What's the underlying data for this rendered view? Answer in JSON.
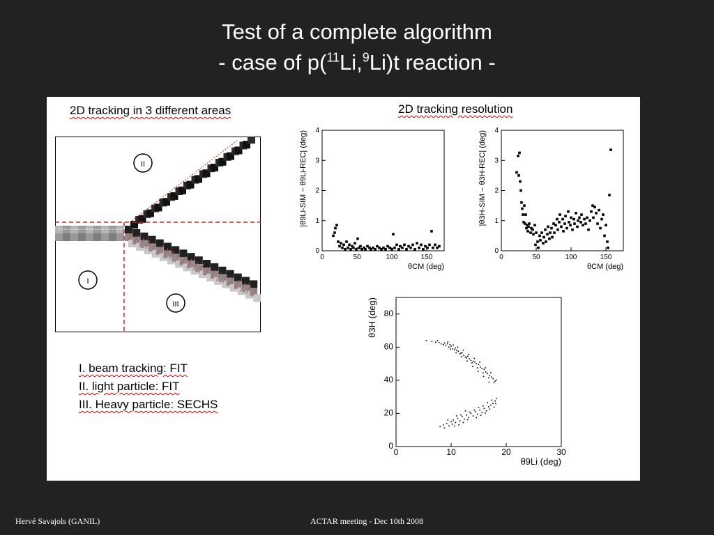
{
  "slide": {
    "title_line1": "Test of a complete algorithm",
    "title_line2_pre": "- case of p(",
    "title_line2_sup1": "11",
    "title_line2_mid": "Li,",
    "title_line2_sup2": "9",
    "title_line2_post": "Li)t reaction -",
    "footer_left": "Hervé Savajols (GANIL)",
    "footer_center": "ACTAR meeting - Dec 10th 2008"
  },
  "panel": {
    "left_heading": "2D tracking in 3 different areas",
    "right_heading": "2D tracking resolution",
    "area_labels": [
      "II",
      "I",
      "III"
    ],
    "legend": [
      "I. beam tracking: FIT",
      "II. light particle: FIT",
      "III. Heavy particle: SECHS"
    ]
  },
  "colors": {
    "background": "#222222",
    "panel": "#ffffff",
    "dashed_lines": "#d42020"
  },
  "chart_data": [
    {
      "type": "scatter",
      "name_hint": "9Li resolution",
      "ylabel": "|θ9Li-SIM − θ9Li-REC| (deg)",
      "xlabel": "θCM (deg)",
      "xlim": [
        0,
        175
      ],
      "ylim": [
        0,
        4
      ],
      "xticks": [
        0,
        50,
        100,
        150
      ],
      "yticks": [
        0,
        1,
        2,
        3,
        4
      ],
      "points": [
        [
          16,
          0.5
        ],
        [
          18,
          0.6
        ],
        [
          19,
          0.75
        ],
        [
          21,
          0.85
        ],
        [
          23,
          0.3
        ],
        [
          25,
          0.15
        ],
        [
          27,
          0.25
        ],
        [
          29,
          0.1
        ],
        [
          31,
          0.2
        ],
        [
          33,
          0.05
        ],
        [
          35,
          0.3
        ],
        [
          37,
          0.1
        ],
        [
          39,
          0.2
        ],
        [
          41,
          0.05
        ],
        [
          43,
          0.15
        ],
        [
          45,
          0.1
        ],
        [
          47,
          0.25
        ],
        [
          49,
          0.05
        ],
        [
          51,
          0.4
        ],
        [
          53,
          0.1
        ],
        [
          55,
          0.15
        ],
        [
          57,
          0.05
        ],
        [
          60,
          0.1
        ],
        [
          62,
          0.05
        ],
        [
          65,
          0.15
        ],
        [
          68,
          0.1
        ],
        [
          70,
          0.05
        ],
        [
          73,
          0.1
        ],
        [
          76,
          0.05
        ],
        [
          79,
          0.15
        ],
        [
          82,
          0.1
        ],
        [
          85,
          0.05
        ],
        [
          88,
          0.1
        ],
        [
          91,
          0.05
        ],
        [
          94,
          0.15
        ],
        [
          97,
          0.1
        ],
        [
          100,
          0.05
        ],
        [
          102,
          0.55
        ],
        [
          104,
          0.1
        ],
        [
          107,
          0.2
        ],
        [
          110,
          0.05
        ],
        [
          112,
          0.15
        ],
        [
          115,
          0.1
        ],
        [
          118,
          0.2
        ],
        [
          121,
          0.05
        ],
        [
          124,
          0.15
        ],
        [
          127,
          0.1
        ],
        [
          130,
          0.2
        ],
        [
          133,
          0.05
        ],
        [
          136,
          0.25
        ],
        [
          139,
          0.1
        ],
        [
          142,
          0.2
        ],
        [
          145,
          0.05
        ],
        [
          148,
          0.15
        ],
        [
          151,
          0.1
        ],
        [
          154,
          0.2
        ],
        [
          157,
          0.65
        ],
        [
          159,
          0.1
        ],
        [
          162,
          0.2
        ],
        [
          165,
          0.1
        ],
        [
          168,
          0.15
        ]
      ]
    },
    {
      "type": "scatter",
      "name_hint": "3H resolution",
      "ylabel": "|θ3H-SIM − θ3H-REC| (deg)",
      "xlabel": "θCM (deg)",
      "xlim": [
        0,
        175
      ],
      "ylim": [
        0,
        4
      ],
      "xticks": [
        0,
        50,
        100,
        150
      ],
      "yticks": [
        0,
        1,
        2,
        3,
        4
      ],
      "points": [
        [
          22,
          2.6
        ],
        [
          24,
          3.15
        ],
        [
          25,
          2.5
        ],
        [
          26,
          3.25
        ],
        [
          27,
          2.3
        ],
        [
          28,
          2.0
        ],
        [
          29,
          1.6
        ],
        [
          30,
          1.4
        ],
        [
          31,
          1.2
        ],
        [
          32,
          0.95
        ],
        [
          33,
          1.5
        ],
        [
          34,
          0.9
        ],
        [
          35,
          1.2
        ],
        [
          36,
          0.75
        ],
        [
          37,
          0.85
        ],
        [
          38,
          0.65
        ],
        [
          39,
          0.8
        ],
        [
          40,
          0.9
        ],
        [
          42,
          0.6
        ],
        [
          43,
          0.75
        ],
        [
          45,
          0.7
        ],
        [
          46,
          0.55
        ],
        [
          48,
          0.85
        ],
        [
          49,
          0.2
        ],
        [
          50,
          0.6
        ],
        [
          52,
          0.3
        ],
        [
          53,
          0.1
        ],
        [
          55,
          0.5
        ],
        [
          56,
          0.35
        ],
        [
          58,
          0.6
        ],
        [
          60,
          0.25
        ],
        [
          61,
          0.45
        ],
        [
          63,
          0.7
        ],
        [
          64,
          0.3
        ],
        [
          66,
          0.55
        ],
        [
          67,
          0.8
        ],
        [
          69,
          0.4
        ],
        [
          70,
          0.6
        ],
        [
          72,
          0.75
        ],
        [
          73,
          0.45
        ],
        [
          75,
          0.9
        ],
        [
          76,
          0.6
        ],
        [
          78,
          0.85
        ],
        [
          80,
          1.05
        ],
        [
          81,
          0.7
        ],
        [
          83,
          0.95
        ],
        [
          84,
          1.2
        ],
        [
          86,
          0.8
        ],
        [
          88,
          1.05
        ],
        [
          89,
          0.65
        ],
        [
          91,
          0.9
        ],
        [
          92,
          1.15
        ],
        [
          94,
          0.75
        ],
        [
          96,
          1.3
        ],
        [
          97,
          0.95
        ],
        [
          99,
          0.85
        ],
        [
          100,
          1.1
        ],
        [
          102,
          0.7
        ],
        [
          104,
          1.05
        ],
        [
          105,
          0.9
        ],
        [
          107,
          1.25
        ],
        [
          109,
          0.8
        ],
        [
          110,
          1.0
        ],
        [
          112,
          1.1
        ],
        [
          114,
          0.95
        ],
        [
          115,
          1.2
        ],
        [
          117,
          0.85
        ],
        [
          119,
          1.05
        ],
        [
          121,
          0.9
        ],
        [
          123,
          1.1
        ],
        [
          125,
          0.7
        ],
        [
          127,
          1.0
        ],
        [
          129,
          1.3
        ],
        [
          131,
          1.5
        ],
        [
          132,
          1.1
        ],
        [
          134,
          1.45
        ],
        [
          136,
          1.25
        ],
        [
          138,
          0.9
        ],
        [
          140,
          1.35
        ],
        [
          142,
          0.75
        ],
        [
          144,
          1.05
        ],
        [
          146,
          1.2
        ],
        [
          148,
          0.5
        ],
        [
          150,
          0.85
        ],
        [
          152,
          0.3
        ],
        [
          153,
          0.1
        ],
        [
          155,
          1.85
        ],
        [
          157,
          3.35
        ]
      ]
    },
    {
      "type": "scatter",
      "name_hint": "kinematics",
      "ylabel": "θ3H (deg)",
      "xlabel": "θ9Li (deg)",
      "xlim": [
        0,
        30
      ],
      "ylim": [
        0,
        90
      ],
      "xticks": [
        0,
        10,
        20,
        30
      ],
      "yticks": [
        0,
        20,
        40,
        60,
        80
      ],
      "upper_branch": [
        [
          5.5,
          64
        ],
        [
          6.5,
          63.5
        ],
        [
          7.2,
          63
        ],
        [
          7.8,
          62.8
        ],
        [
          8.2,
          62
        ],
        [
          8.6,
          61.5
        ],
        [
          9,
          61
        ],
        [
          9.3,
          62
        ],
        [
          9.6,
          60
        ],
        [
          10,
          60.5
        ],
        [
          10.3,
          59
        ],
        [
          10.6,
          58.5
        ],
        [
          11,
          58
        ],
        [
          11.3,
          57.5
        ],
        [
          11.6,
          56
        ],
        [
          12,
          56.5
        ],
        [
          12.3,
          55
        ],
        [
          12.6,
          54
        ],
        [
          13,
          54.5
        ],
        [
          13.3,
          53
        ],
        [
          13.6,
          52
        ],
        [
          14,
          51.5
        ],
        [
          14.3,
          51
        ],
        [
          14.6,
          50
        ],
        [
          15,
          49.5
        ],
        [
          15.3,
          48
        ],
        [
          15.6,
          47
        ],
        [
          16,
          46.5
        ],
        [
          16.3,
          45
        ],
        [
          16.6,
          44
        ],
        [
          17,
          43
        ],
        [
          17.3,
          42
        ],
        [
          17.6,
          41
        ],
        [
          18,
          39.5
        ],
        [
          16.8,
          41.5
        ],
        [
          15.8,
          44.5
        ],
        [
          14.8,
          47.5
        ],
        [
          13.8,
          50.5
        ],
        [
          12.8,
          53.5
        ],
        [
          11.8,
          56.5
        ],
        [
          10.8,
          59.5
        ],
        [
          9.8,
          61.5
        ],
        [
          8.8,
          62.5
        ],
        [
          7.5,
          64
        ],
        [
          17.8,
          38.5
        ],
        [
          18.2,
          40.2
        ],
        [
          16.2,
          47.5
        ],
        [
          15.2,
          51
        ],
        [
          14.2,
          53.2
        ],
        [
          13.2,
          55.6
        ],
        [
          12.2,
          58.2
        ],
        [
          11.2,
          60.1
        ],
        [
          10.4,
          61.3
        ],
        [
          9.4,
          63.1
        ],
        [
          17.2,
          44.6
        ],
        [
          16.9,
          38.8
        ],
        [
          15.9,
          42.3
        ],
        [
          14.9,
          45.4
        ],
        [
          13.9,
          48.3
        ],
        [
          12.9,
          51.6
        ],
        [
          11.9,
          54.2
        ],
        [
          10.9,
          56.6
        ],
        [
          9.9,
          58.9
        ]
      ],
      "lower_branch": [
        [
          8,
          12
        ],
        [
          8.6,
          13
        ],
        [
          9.2,
          14
        ],
        [
          9.6,
          12.5
        ],
        [
          10,
          15
        ],
        [
          10.4,
          16
        ],
        [
          10.8,
          14.5
        ],
        [
          11.2,
          17
        ],
        [
          11.6,
          15.5
        ],
        [
          12,
          18
        ],
        [
          12.4,
          16.5
        ],
        [
          12.8,
          19
        ],
        [
          13.2,
          17.5
        ],
        [
          13.6,
          20
        ],
        [
          14,
          18.5
        ],
        [
          14.4,
          21
        ],
        [
          14.8,
          19.5
        ],
        [
          15.2,
          22
        ],
        [
          15.6,
          20.5
        ],
        [
          16,
          23
        ],
        [
          16.4,
          21.5
        ],
        [
          16.8,
          24
        ],
        [
          17.2,
          25
        ],
        [
          17.6,
          26
        ],
        [
          18,
          27.5
        ],
        [
          18.2,
          29
        ],
        [
          17.4,
          28
        ],
        [
          16.6,
          26.5
        ],
        [
          15.8,
          24.5
        ],
        [
          15,
          23.5
        ],
        [
          14.2,
          22
        ],
        [
          13.4,
          20.8
        ],
        [
          12.6,
          21.5
        ],
        [
          11.8,
          19
        ],
        [
          11,
          18.5
        ],
        [
          10.2,
          13.5
        ],
        [
          9.4,
          16
        ],
        [
          8.8,
          11.2
        ],
        [
          12.2,
          14.5
        ],
        [
          13,
          16.2
        ],
        [
          14.6,
          17.4
        ],
        [
          15.4,
          18.9
        ],
        [
          16.2,
          20.2
        ],
        [
          17,
          22.6
        ],
        [
          17.8,
          23.8
        ],
        [
          18.1,
          25.9
        ],
        [
          11.4,
          13.2
        ],
        [
          10.6,
          12.4
        ]
      ]
    }
  ]
}
